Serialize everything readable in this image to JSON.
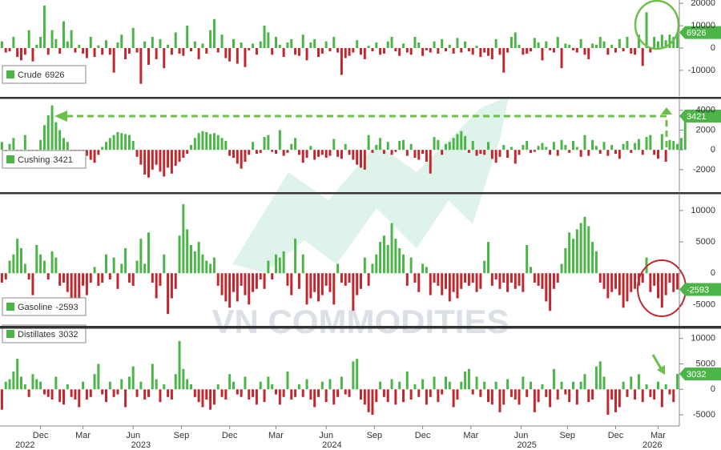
{
  "watermark": "VN COMMODITIES",
  "chart_data": [
    {
      "type": "bar",
      "series": [
        {
          "name": "Crude",
          "color": "#4cb548",
          "negative_color": "#c1272d",
          "values": [
            3000,
            -2000,
            -1500,
            5000,
            -4000,
            -5500,
            -3000,
            8000,
            -6000,
            1500,
            5000,
            19000,
            -3000,
            8000,
            4000,
            -2500,
            12000,
            3000,
            8000,
            -2000,
            1500,
            -2500,
            -4500,
            5000,
            -4000,
            1200,
            -3000,
            3500,
            -3000,
            -11000,
            2500,
            6000,
            -5000,
            -2500,
            9000,
            -2000,
            -16000,
            3000,
            -7500,
            5000,
            -5000,
            4000,
            -9000,
            1500,
            -3000,
            7000,
            -2500,
            -3500,
            10000,
            -1500,
            3000,
            -5000,
            2000,
            -2500,
            8000,
            13000,
            -2000,
            6000,
            -4500,
            -6000,
            4000,
            -7000,
            2500,
            -8500,
            -1000,
            2000,
            -3000,
            3000,
            10000,
            7000,
            -3000,
            5000,
            1500,
            -4000,
            2500,
            4000,
            -3000,
            -3500,
            6000,
            -5500,
            2500,
            4000,
            -4000,
            -2500,
            3000,
            -1500,
            5000,
            -2000,
            -12000,
            -4500,
            -3500,
            -2000,
            3500,
            -3000,
            -5000,
            1000,
            -1500,
            2500,
            -3000,
            -2500,
            3000,
            5000,
            -1500,
            -3500,
            2000,
            -2000,
            -3000,
            5000,
            2500,
            -3500,
            -1000,
            -2000,
            3000,
            -2500,
            4000,
            -1500,
            1500,
            -2500,
            4500,
            -2000,
            3000,
            -1500,
            -3000,
            1000,
            -4000,
            -2000,
            -3500,
            -5000,
            4000,
            -3000,
            -11000,
            -2000,
            5000,
            7000,
            1500,
            -3000,
            -2500,
            -1500,
            4500,
            2500,
            -5500,
            3000,
            -1000,
            -2000,
            5000,
            -9000,
            2000,
            1500,
            -1000,
            -2000,
            4000,
            -3000,
            -5000,
            2000,
            1500,
            5000,
            3000,
            -3000,
            1500,
            -2000,
            4000,
            -1500,
            5000,
            -2500,
            -3000,
            6000,
            -8000,
            16000,
            -2000,
            5000,
            3000,
            6000,
            3500,
            6000,
            5000,
            6926
          ]
        }
      ],
      "ylim": [
        -21500,
        21500
      ],
      "yticks": [
        -10000,
        0,
        10000,
        20000
      ]
    },
    {
      "type": "bar",
      "series": [
        {
          "name": "Cushing",
          "color": "#4cb548",
          "negative_color": "#c1272d",
          "values": [
            800,
            -400,
            600,
            1200,
            -800,
            -600,
            1500,
            -500,
            -900,
            -1200,
            1000,
            2500,
            3500,
            4500,
            2800,
            2000,
            1200,
            800,
            -1500,
            -1800,
            -1200,
            -900,
            -600,
            -1000,
            -1300,
            -500,
            300,
            800,
            1200,
            1500,
            1800,
            1700,
            1600,
            1500,
            900,
            -700,
            -1500,
            -2500,
            -2800,
            -2000,
            -1500,
            -2200,
            -2700,
            -1800,
            -2400,
            -1600,
            -1200,
            -800,
            -400,
            500,
            1200,
            1700,
            1900,
            1800,
            1600,
            1700,
            1500,
            1200,
            900,
            -600,
            -800,
            -1400,
            -1900,
            -1200,
            -500,
            800,
            -400,
            -300,
            1300,
            1500,
            -200,
            -400,
            2000,
            -600,
            -300,
            600,
            1200,
            -500,
            -1300,
            -800,
            400,
            -1000,
            -700,
            -500,
            -800,
            -600,
            1100,
            -700,
            -900,
            600,
            -500,
            -1000,
            -1500,
            -1800,
            -2000,
            1500,
            -300,
            500,
            1200,
            -400,
            800,
            -500,
            -200,
            900,
            1000,
            -600,
            600,
            -800,
            -1000,
            -400,
            -1200,
            -2400,
            1300,
            1000,
            -500,
            600,
            800,
            1200,
            1600,
            1900,
            1400,
            -300,
            900,
            -600,
            -400,
            -500,
            800,
            -900,
            -1300,
            -700,
            500,
            -800,
            300,
            -1400,
            -500,
            500,
            900,
            -300,
            -200,
            400,
            700,
            300,
            -500,
            800,
            -600,
            1000,
            500,
            -300,
            900,
            300,
            -700,
            1500,
            -600,
            1000,
            400,
            -400,
            800,
            -600,
            500,
            -400,
            -900,
            600,
            900,
            -300,
            700,
            1100,
            -500,
            1300,
            1500,
            -500,
            -900,
            1600,
            -1200,
            1000,
            900,
            600,
            1200,
            3421
          ]
        }
      ],
      "ylim": [
        -4200,
        5200
      ],
      "yticks": [
        -2000,
        0,
        2000,
        4000
      ]
    },
    {
      "type": "bar",
      "series": [
        {
          "name": "Gasoline",
          "color": "#4cb548",
          "negative_color": "#c1272d",
          "values": [
            -1500,
            -1000,
            2000,
            3000,
            5500,
            4000,
            1500,
            -1000,
            -3500,
            4500,
            3000,
            2000,
            -1000,
            3500,
            2500,
            -2000,
            -1500,
            -3000,
            -4000,
            -5000,
            -4500,
            -2000,
            -3500,
            -1500,
            1000,
            -2000,
            -1500,
            3000,
            -1000,
            2500,
            -2500,
            1500,
            4000,
            -1500,
            -2000,
            2000,
            5500,
            1500,
            6500,
            -1500,
            -4000,
            -2000,
            3000,
            -6500,
            -4000,
            -2500,
            6000,
            11000,
            7000,
            4500,
            3500,
            5000,
            3000,
            2000,
            1500,
            2500,
            -2000,
            -3500,
            -4500,
            -5500,
            -3000,
            -4500,
            -2000,
            -3500,
            -5000,
            -3000,
            -2500,
            -1000,
            -2500,
            2000,
            -1000,
            3000,
            2500,
            3500,
            -2000,
            -3500,
            5500,
            -2500,
            3000,
            -5000,
            -4000,
            -3000,
            -4500,
            -3500,
            -2000,
            -3000,
            -5000,
            1500,
            -1500,
            -2000,
            -1500,
            -6000,
            -3500,
            -2500,
            2500,
            -2000,
            1500,
            3000,
            5000,
            6000,
            4500,
            8000,
            5500,
            4000,
            3000,
            -2000,
            2500,
            -1500,
            -3000,
            1500,
            1000,
            -3500,
            -1500,
            -2000,
            -3500,
            -2500,
            -4500,
            -3000,
            -4000,
            -2500,
            -1500,
            -2000,
            -1500,
            -3000,
            -2500,
            2000,
            5000,
            -2000,
            -1000,
            -2500,
            -1500,
            -3000,
            -1500,
            -2500,
            -2000,
            -3000,
            4500,
            1000,
            -1500,
            -2000,
            -2500,
            -4500,
            -6000,
            -2500,
            -1500,
            1500,
            4000,
            6500,
            5500,
            7000,
            8000,
            9000,
            7500,
            5000,
            3500,
            -1500,
            -2500,
            -4000,
            -3000,
            -2500,
            -3500,
            -5500,
            -4500,
            -3000,
            -2500,
            -2000,
            -1500,
            2500,
            -3000,
            -2000,
            -4000,
            -5500,
            -3500,
            -1500,
            -3000,
            -2593
          ]
        }
      ],
      "ylim": [
        -8400,
        12800
      ],
      "yticks": [
        -5000,
        0,
        5000,
        10000
      ]
    },
    {
      "type": "bar",
      "series": [
        {
          "name": "Distillates",
          "color": "#4cb548",
          "negative_color": "#c1272d",
          "values": [
            -4000,
            1500,
            2000,
            3500,
            6000,
            2500,
            1000,
            -1500,
            3000,
            2000,
            1500,
            -1000,
            -1500,
            -2000,
            2500,
            -2500,
            -3000,
            1000,
            -1500,
            -2000,
            -3500,
            1500,
            -2000,
            -1500,
            3000,
            5000,
            -1000,
            -2500,
            1500,
            -1500,
            -1000,
            2000,
            -3500,
            2500,
            4500,
            -1500,
            1500,
            -2000,
            -1500,
            5000,
            2000,
            -2500,
            1000,
            -1500,
            -2000,
            3000,
            9500,
            4000,
            2000,
            1000,
            -1500,
            -2500,
            -3500,
            -2000,
            -4000,
            -3000,
            1000,
            -1500,
            -2000,
            3000,
            1500,
            -1000,
            -1500,
            2500,
            -2000,
            -1500,
            -3000,
            1500,
            -2500,
            2500,
            1000,
            -1000,
            -3000,
            -1500,
            3500,
            -2000,
            -1500,
            1000,
            -1500,
            2000,
            -2000,
            -3500,
            -1500,
            1500,
            -2500,
            2000,
            -3000,
            -1500,
            2500,
            -1000,
            -1500,
            5500,
            6000,
            -2000,
            -3000,
            -4500,
            -5000,
            -2500,
            1500,
            -1500,
            -2500,
            2000,
            -3000,
            1500,
            -2500,
            3500,
            -2000,
            1000,
            -1500,
            2000,
            -3000,
            -1500,
            2500,
            -2500,
            -1000,
            2500,
            1500,
            -3500,
            -2000,
            1500,
            3500,
            4000,
            -1000,
            2500,
            -1500,
            1500,
            -2500,
            -3000,
            1500,
            -4500,
            -3000,
            2000,
            -1500,
            -2000,
            -3000,
            2500,
            -1500,
            1500,
            -4500,
            -2500,
            1000,
            -1500,
            -3500,
            4000,
            -2000,
            1500,
            -1000,
            -2500,
            1500,
            -3000,
            1500,
            3000,
            -2500,
            -2000,
            4500,
            5500,
            2500,
            -5000,
            -2000,
            -4500,
            -3500,
            1500,
            -1500,
            2500,
            -2000,
            3000,
            -2500,
            1000,
            -1500,
            -2000,
            1500,
            -3500,
            1000,
            -1000,
            -2500,
            3032
          ]
        }
      ],
      "ylim": [
        -7200,
        12000
      ],
      "yticks": [
        -5000,
        0,
        5000,
        10000
      ],
      "xlim": [
        -0.5,
        175.5
      ],
      "xticks": [
        {
          "value": 10,
          "label": "Dec"
        },
        {
          "value": 21,
          "label": "Mar"
        },
        {
          "value": 34,
          "label": "Jun"
        },
        {
          "value": 46.5,
          "label": "Sep"
        },
        {
          "value": 59,
          "label": "Dec"
        },
        {
          "value": 71,
          "label": "Mar"
        },
        {
          "value": 84,
          "label": "Jun"
        },
        {
          "value": 96.5,
          "label": "Sep"
        },
        {
          "value": 109,
          "label": "Dec"
        },
        {
          "value": 121.5,
          "label": "Mar"
        },
        {
          "value": 134.5,
          "label": "Jun"
        },
        {
          "value": 146.5,
          "label": "Sep"
        },
        {
          "value": 159,
          "label": "Dec"
        },
        {
          "value": 170,
          "label": "Mar"
        }
      ],
      "year_ticks": [
        {
          "value": 6,
          "label": "2022"
        },
        {
          "value": 36,
          "label": "2023"
        },
        {
          "value": 85.5,
          "label": "2024"
        },
        {
          "value": 136,
          "label": "2025"
        },
        {
          "value": 168.5,
          "label": "2026"
        }
      ]
    }
  ]
}
